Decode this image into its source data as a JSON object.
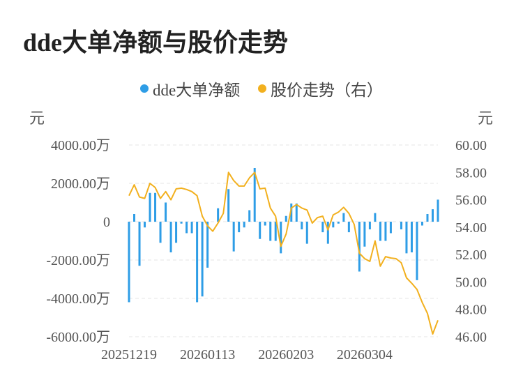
{
  "title": "dde大单净额与股价走势",
  "legend": [
    {
      "label": "dde大单净额",
      "color": "#2e9de6"
    },
    {
      "label": "股价走势（右）",
      "color": "#f2b01e"
    }
  ],
  "chart_data": {
    "type": "bar",
    "left_unit": "元",
    "right_unit": "元",
    "x_tick_labels": [
      "20251219",
      "20260113",
      "20260203",
      "20260304"
    ],
    "y_left_ticks": [
      "4000.00万",
      "2000.00万",
      "0",
      "-2000.00万",
      "-4000.00万",
      "-6000.00万"
    ],
    "y_right_ticks": [
      "60.00",
      "58.00",
      "56.00",
      "54.00",
      "52.00",
      "50.00",
      "48.00",
      "46.00"
    ],
    "ylim_left": [
      -6000,
      4000
    ],
    "ylim_right": [
      46,
      60
    ],
    "grid": true,
    "legend_position": "top",
    "series": [
      {
        "name": "dde大单净额",
        "type": "bar",
        "axis": "left",
        "color": "#2e9de6",
        "values": [
          -4200,
          400,
          -2300,
          -300,
          1500,
          1500,
          -1100,
          1000,
          -1600,
          -1100,
          -100,
          -600,
          -600,
          -4200,
          -3900,
          -2400,
          0,
          700,
          0,
          1700,
          -1550,
          -550,
          -300,
          600,
          2800,
          -900,
          -200,
          -1000,
          -1000,
          -1650,
          300,
          950,
          950,
          -400,
          -1150,
          0,
          0,
          -550,
          -1150,
          -300,
          -100,
          450,
          -550,
          0,
          -2600,
          -1300,
          -400,
          450,
          -1000,
          -1000,
          -600,
          0,
          -400,
          -1650,
          -1600,
          -3050,
          -200,
          400,
          650,
          1150
        ]
      },
      {
        "name": "股价走势（右）",
        "type": "line",
        "axis": "right",
        "color": "#f2b01e",
        "values": [
          56.3,
          57.1,
          56.2,
          56.1,
          57.2,
          56.9,
          56.1,
          56.6,
          56.0,
          56.8,
          56.85,
          56.75,
          56.6,
          56.3,
          54.8,
          54.1,
          53.7,
          54.3,
          55.0,
          58.0,
          57.4,
          57.0,
          57.0,
          57.6,
          58.0,
          56.8,
          56.85,
          55.4,
          54.8,
          52.6,
          53.5,
          55.4,
          55.65,
          55.4,
          55.25,
          54.3,
          54.7,
          54.8,
          53.8,
          54.9,
          55.1,
          55.45,
          55.0,
          54.2,
          52.1,
          51.7,
          51.5,
          53.0,
          51.15,
          51.85,
          51.75,
          51.7,
          51.4,
          50.3,
          49.9,
          49.45,
          48.5,
          47.7,
          46.2,
          47.2
        ]
      }
    ]
  }
}
